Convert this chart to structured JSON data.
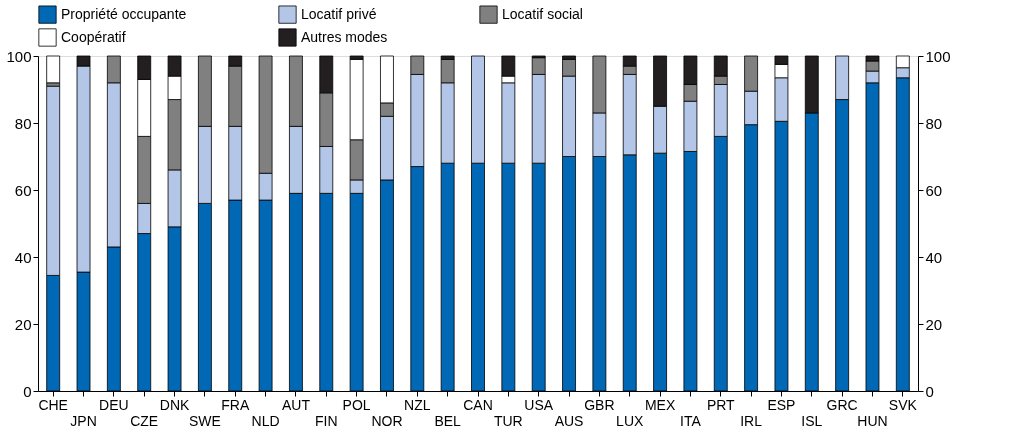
{
  "chart_data": {
    "type": "bar",
    "stacked": true,
    "legend": "top",
    "grid": false,
    "categories": [
      "CHE",
      "JPN",
      "DEU",
      "CZE",
      "DNK",
      "SWE",
      "FRA",
      "NLD",
      "AUT",
      "FIN",
      "POL",
      "NOR",
      "NZL",
      "BEL",
      "CAN",
      "TUR",
      "USA",
      "AUS",
      "GBR",
      "LUX",
      "MEX",
      "ITA",
      "PRT",
      "IRL",
      "ESP",
      "ISL",
      "GRC",
      "HUN",
      "SVK"
    ],
    "series": [
      {
        "name": "Propriété occupante",
        "color": "#0068b5",
        "values": [
          34.5,
          35.5,
          43,
          47,
          49,
          56,
          57,
          57,
          59,
          59,
          59,
          63,
          67,
          68,
          68,
          68,
          68,
          70,
          70,
          70.5,
          71,
          71.5,
          76,
          79.5,
          80.5,
          83,
          87,
          92,
          93.5
        ]
      },
      {
        "name": "Locatif privé",
        "color": "#b3c6e7",
        "values": [
          56.5,
          61.5,
          49,
          9,
          17,
          23,
          22,
          8,
          20,
          14,
          4,
          19,
          27.5,
          24,
          32,
          24,
          26.5,
          24,
          13,
          24,
          14,
          15,
          15.5,
          10,
          13,
          0,
          13,
          3.5,
          3
        ]
      },
      {
        "name": "Locatif social",
        "color": "#808080",
        "values": [
          1,
          0,
          8,
          20,
          21,
          21,
          18,
          35,
          21,
          16,
          12,
          4,
          5.5,
          7,
          0,
          0,
          5,
          5,
          17,
          2.5,
          0,
          5,
          2.5,
          10.5,
          0,
          0,
          0,
          3,
          0
        ]
      },
      {
        "name": "Coopératif",
        "color": "#ffffff",
        "values": [
          8,
          0,
          0,
          17,
          7,
          0,
          0,
          0,
          0,
          0,
          24,
          14,
          0,
          0,
          0,
          2,
          0,
          0,
          0,
          0,
          0,
          0,
          0,
          0,
          4,
          0,
          0,
          0,
          3.5
        ]
      },
      {
        "name": "Autres modes",
        "color": "#231f20",
        "values": [
          0,
          3,
          0,
          7,
          6,
          0,
          3,
          0,
          0,
          11,
          1,
          0,
          0,
          1,
          0,
          6,
          0.5,
          1,
          0,
          3,
          15,
          8.5,
          6,
          0,
          2.5,
          17,
          0,
          1.5,
          0
        ]
      }
    ],
    "ylim": [
      0,
      100
    ],
    "yticks": [
      0,
      20,
      40,
      60,
      80,
      100
    ],
    "y2lim": [
      0,
      100
    ],
    "y2ticks": [
      0,
      20,
      40,
      60,
      80,
      100
    ]
  }
}
